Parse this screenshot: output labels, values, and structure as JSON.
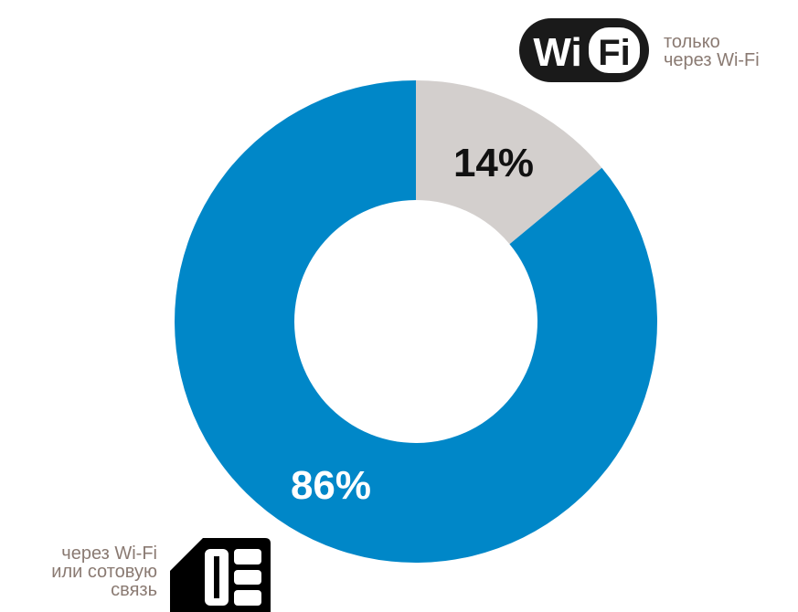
{
  "chart_data": {
    "type": "pie",
    "style": "donut",
    "title": "",
    "slices": [
      {
        "label": "только через Wi-Fi",
        "label_lines": [
          "только",
          "через Wi-Fi"
        ],
        "value": 14,
        "value_label": "14%",
        "color": "#d3cfcd",
        "label_color": "#111111",
        "icon": "wifi-logo-icon",
        "icon_text": [
          "Wi",
          "Fi"
        ]
      },
      {
        "label": "через Wi-Fi или сотовую связь",
        "label_lines": [
          "через Wi-Fi",
          "или сотовую",
          "связь"
        ],
        "value": 86,
        "value_label": "86%",
        "color": "#0087c8",
        "label_color": "#ffffff",
        "icon": "sim-card-icon"
      }
    ],
    "legend_text_color": "#8a7a72",
    "background": "#ffffff"
  }
}
